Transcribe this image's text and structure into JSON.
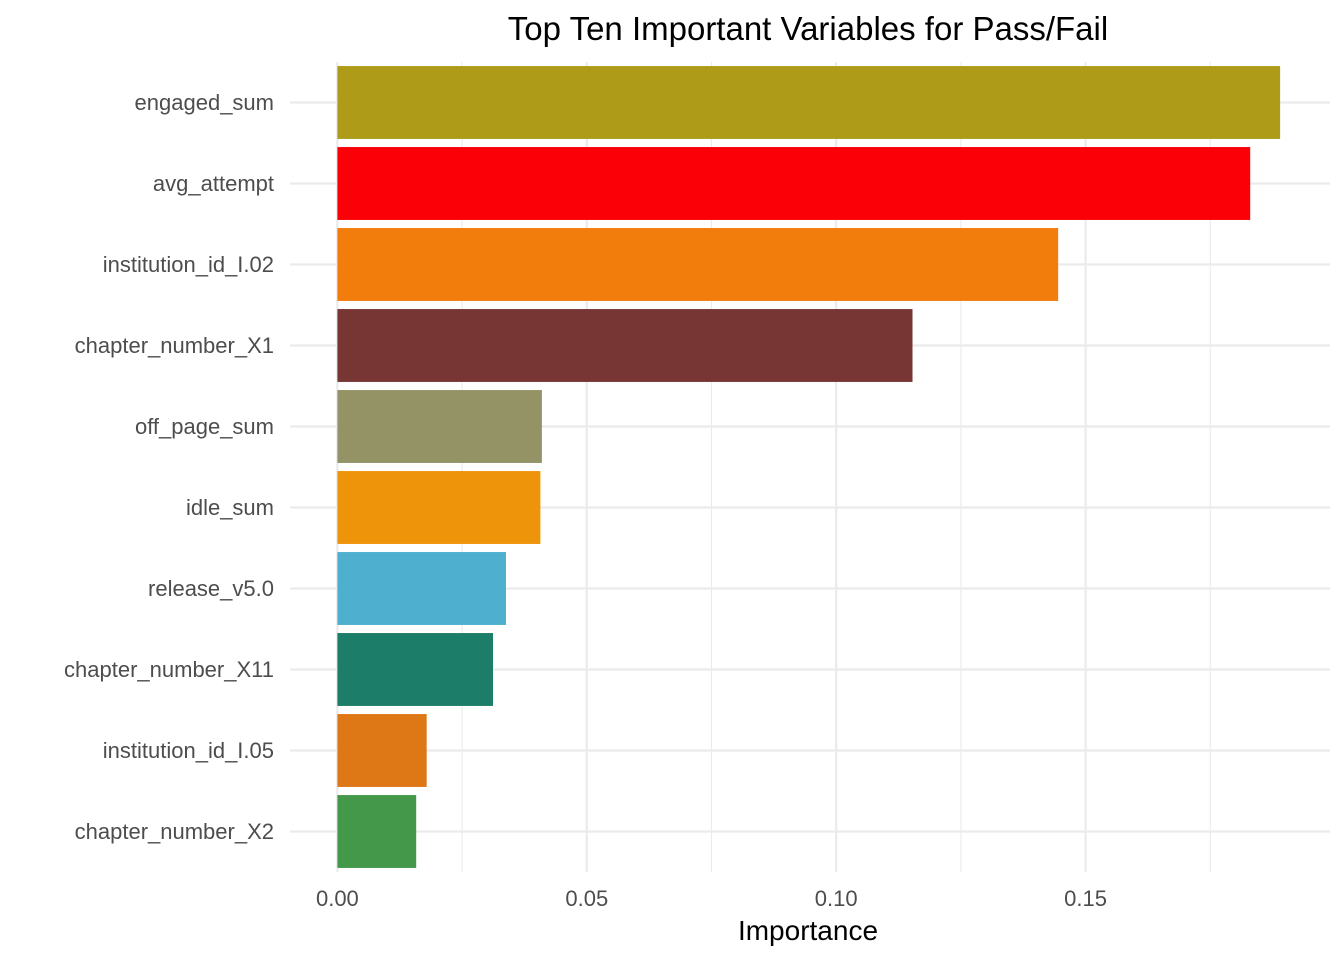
{
  "chart_data": {
    "type": "bar",
    "orientation": "horizontal",
    "title": "Top Ten Important Variables for Pass/Fail",
    "xlabel": "Importance",
    "ylabel": "",
    "categories": [
      "engaged_sum",
      "avg_attempt",
      "institution_id_I.02",
      "chapter_number_X1",
      "off_page_sum",
      "idle_sum",
      "release_v5.0",
      "chapter_number_X11",
      "institution_id_I.05",
      "chapter_number_X2"
    ],
    "values": [
      0.189,
      0.183,
      0.1445,
      0.1153,
      0.041,
      0.0407,
      0.0338,
      0.0312,
      0.0179,
      0.0158
    ],
    "colors": [
      "#AE9C18",
      "#FC0007",
      "#F27C0C",
      "#773633",
      "#939366",
      "#EE940B",
      "#4EAFCF",
      "#1C7E68",
      "#DE7716",
      "#44984A"
    ],
    "xticks": [
      "0.00",
      "0.05",
      "0.10",
      "0.15"
    ],
    "xtick_values": [
      0,
      0.05,
      0.1,
      0.15
    ],
    "xlim": [
      -0.0095,
      0.199
    ],
    "grid": true,
    "legend": "none"
  }
}
